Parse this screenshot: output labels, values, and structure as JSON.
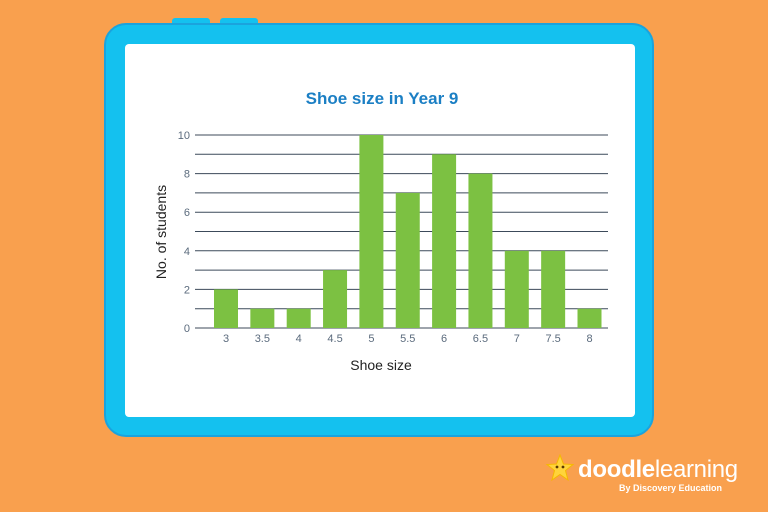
{
  "chart_data": {
    "type": "bar",
    "title": "Shoe size in Year 9",
    "xlabel": "Shoe size",
    "ylabel": "No. of students",
    "categories": [
      "3",
      "3.5",
      "4",
      "4.5",
      "5",
      "5.5",
      "6",
      "6.5",
      "7",
      "7.5",
      "8"
    ],
    "values": [
      2,
      1,
      1,
      3,
      10,
      7,
      9,
      8,
      4,
      4,
      1
    ],
    "ylim": [
      0,
      10
    ],
    "y_ticks": [
      0,
      2,
      4,
      6,
      8,
      10
    ],
    "grid": true,
    "legend": "none"
  },
  "colors": {
    "background": "#F9A04E",
    "frame": "#14C1EF",
    "bar": "#7CC142",
    "title": "#1B7FC4",
    "gridline": "#3C4A5A",
    "tick_label": "#5B6B7D"
  },
  "brand": {
    "name_bold": "doodle",
    "name_light": "learning",
    "tagline": "By Discovery Education",
    "icon": "star-icon"
  }
}
